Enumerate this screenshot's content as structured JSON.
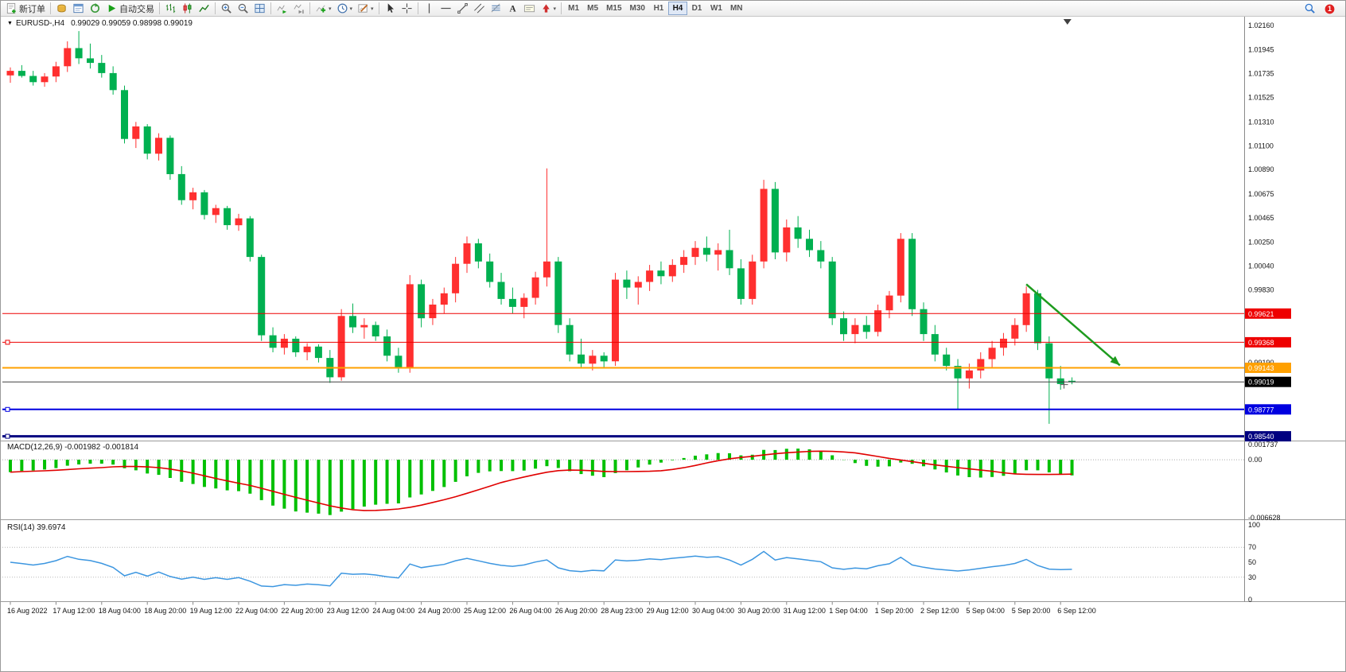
{
  "toolbar": {
    "items": [
      {
        "type": "button",
        "name": "new-order",
        "icon": "new-order",
        "label": "新订单"
      },
      {
        "type": "sep"
      },
      {
        "type": "button",
        "name": "market-watch",
        "icon": "market-watch"
      },
      {
        "type": "button",
        "name": "data-window",
        "icon": "data-window"
      },
      {
        "type": "button",
        "name": "navigator",
        "icon": "navigator"
      },
      {
        "type": "button",
        "name": "auto-trading",
        "icon": "autotrade",
        "label": "自动交易"
      },
      {
        "type": "sep"
      },
      {
        "type": "button",
        "name": "bar-chart-mode",
        "icon": "bar-chart"
      },
      {
        "type": "button",
        "name": "candlestick-mode",
        "icon": "candlestick-chart"
      },
      {
        "type": "button",
        "name": "line-chart-mode",
        "icon": "line-chart"
      },
      {
        "type": "sep"
      },
      {
        "type": "button",
        "name": "zoom-in",
        "icon": "zoom-in"
      },
      {
        "type": "button",
        "name": "zoom-out",
        "icon": "zoom-out"
      },
      {
        "type": "button",
        "name": "tile-windows",
        "icon": "tile-windows"
      },
      {
        "type": "sep"
      },
      {
        "type": "button",
        "name": "auto-scroll",
        "icon": "auto-scroll"
      },
      {
        "type": "button",
        "name": "chart-shift",
        "icon": "chart-shift"
      },
      {
        "type": "sep"
      },
      {
        "type": "button",
        "name": "indicators",
        "icon": "indicators",
        "caret": true
      },
      {
        "type": "button",
        "name": "periods",
        "icon": "periods-clock",
        "caret": true
      },
      {
        "type": "button",
        "name": "templates",
        "icon": "templates",
        "caret": true
      },
      {
        "type": "sep"
      },
      {
        "type": "button",
        "name": "cursor",
        "icon": "cursor"
      },
      {
        "type": "button",
        "name": "crosshair",
        "icon": "crosshair"
      },
      {
        "type": "sep"
      },
      {
        "type": "button",
        "name": "vertical-line",
        "icon": "vline"
      },
      {
        "type": "button",
        "name": "horizontal-line",
        "icon": "hline"
      },
      {
        "type": "button",
        "name": "trendline",
        "icon": "trendline"
      },
      {
        "type": "button",
        "name": "equidistant-channel",
        "icon": "channel"
      },
      {
        "type": "button",
        "name": "fibonacci",
        "icon": "fibo"
      },
      {
        "type": "button",
        "name": "text-tool",
        "icon": "text"
      },
      {
        "type": "button",
        "name": "text-label",
        "icon": "label"
      },
      {
        "type": "button",
        "name": "arrow-objects",
        "icon": "arrow-objects",
        "caret": true
      },
      {
        "type": "sep"
      }
    ],
    "timeframes": [
      {
        "label": "M1"
      },
      {
        "label": "M5"
      },
      {
        "label": "M15"
      },
      {
        "label": "M30"
      },
      {
        "label": "H1"
      },
      {
        "label": "H4",
        "active": true
      },
      {
        "label": "D1"
      },
      {
        "label": "W1"
      },
      {
        "label": "MN"
      }
    ],
    "right": [
      {
        "name": "search",
        "icon": "search"
      },
      {
        "name": "notifications",
        "icon": "notification",
        "badge": "1"
      }
    ]
  },
  "chart": {
    "symbol_label": "EURUSD-,H4",
    "ohlc_readout": "0.99029 0.99059 0.98998 0.99019",
    "macd_label": "MACD(12,26,9) -0.001982 -0.001814",
    "rsi_label": "RSI(14) 39.6974",
    "price_axis": {
      "labels": [
        {
          "text": "1.02160",
          "price": 1.0216
        },
        {
          "text": "1.01945",
          "price": 1.01945
        },
        {
          "text": "1.01735",
          "price": 1.01735
        },
        {
          "text": "1.01525",
          "price": 1.01525
        },
        {
          "text": "1.01310",
          "price": 1.0131
        },
        {
          "text": "1.01100",
          "price": 1.011
        },
        {
          "text": "1.00890",
          "price": 1.0089
        },
        {
          "text": "1.00675",
          "price": 1.00675
        },
        {
          "text": "1.00465",
          "price": 1.00465
        },
        {
          "text": "1.00250",
          "price": 1.0025
        },
        {
          "text": "1.00040",
          "price": 1.0004
        },
        {
          "text": "0.99830",
          "price": 0.9983
        },
        {
          "text": "0.99190",
          "price": 0.9919
        }
      ]
    },
    "hlines": [
      {
        "name": "resistance-line-upper",
        "price": 0.99621,
        "color": "#ee0000",
        "width": 1,
        "badge": "0.99621",
        "badge_bg": "#ee0000"
      },
      {
        "name": "resistance-line-lower",
        "price": 0.99368,
        "color": "#ee0000",
        "width": 1,
        "badge": "0.99368",
        "badge_bg": "#ee0000",
        "handles": true
      },
      {
        "name": "support-line-gold",
        "price": 0.99143,
        "color": "#ffa000",
        "width": 2,
        "badge": "0.99143",
        "badge_bg": "#ffa000"
      },
      {
        "name": "current-price-line",
        "price": 0.99019,
        "color": "#404040",
        "width": 1,
        "badge": "0.99019",
        "badge_bg": "#000000"
      },
      {
        "name": "support-line-blue",
        "price": 0.98777,
        "color": "#0000e0",
        "width": 2,
        "badge": "0.98777",
        "badge_bg": "#0000e0",
        "handles": true
      },
      {
        "name": "support-line-navy",
        "price": 0.9854,
        "color": "#000080",
        "width": 3,
        "badge": "0.98540",
        "badge_bg": "#000080",
        "handles": true
      }
    ],
    "arrow": {
      "from_bar": 89,
      "from_price": 0.9988,
      "to_bar": 97.2,
      "to_price": 0.99165,
      "color": "#1e9b1e"
    },
    "cursor": {
      "bar": 92.3,
      "price": 0.98995
    },
    "shift_marker_bar": 92.6
  },
  "chart_data": {
    "type": "candlestick",
    "symbol": "EURUSD-",
    "timeframe": "H4",
    "ylim": [
      0.98502,
      1.02223
    ],
    "colors": {
      "bull": "#ff2f2f",
      "bear": "#00b050",
      "macd_histogram": "#00c000",
      "macd_signal": "#e00000",
      "rsi_line": "#3c96e0"
    },
    "x_labels": [
      "16 Aug 2022",
      "17 Aug 12:00",
      "18 Aug 04:00",
      "18 Aug 20:00",
      "19 Aug 12:00",
      "22 Aug 04:00",
      "22 Aug 20:00",
      "23 Aug 12:00",
      "24 Aug 04:00",
      "24 Aug 20:00",
      "25 Aug 12:00",
      "26 Aug 04:00",
      "26 Aug 20:00",
      "28 Aug 23:00",
      "29 Aug 12:00",
      "30 Aug 04:00",
      "30 Aug 20:00",
      "31 Aug 12:00",
      "1 Sep 04:00",
      "1 Sep 20:00",
      "2 Sep 12:00",
      "5 Sep 04:00",
      "5 Sep 20:00",
      "6 Sep 12:00"
    ],
    "bars_per_label": 4,
    "ohlc": [
      [
        1.0172,
        1.0179,
        1.01655,
        1.0176
      ],
      [
        1.0176,
        1.0181,
        1.017,
        1.01715
      ],
      [
        1.01715,
        1.0176,
        1.0163,
        1.0166
      ],
      [
        1.0166,
        1.0174,
        1.0162,
        1.0171
      ],
      [
        1.0171,
        1.0184,
        1.0166,
        1.018
      ],
      [
        1.018,
        1.0202,
        1.0175,
        1.0196
      ],
      [
        1.0196,
        1.0211,
        1.0182,
        1.0187
      ],
      [
        1.0187,
        1.02,
        1.0178,
        1.0183
      ],
      [
        1.0183,
        1.019,
        1.017,
        1.0174
      ],
      [
        1.0174,
        1.018,
        1.0155,
        1.0159
      ],
      [
        1.0159,
        1.0163,
        1.0112,
        1.0116
      ],
      [
        1.0116,
        1.0131,
        1.0108,
        1.0127
      ],
      [
        1.0127,
        1.0129,
        1.0098,
        1.0103
      ],
      [
        1.0103,
        1.0121,
        1.0097,
        1.0117
      ],
      [
        1.0117,
        1.0119,
        1.008,
        1.0085
      ],
      [
        1.0085,
        1.0092,
        1.0058,
        1.0062
      ],
      [
        1.0062,
        1.0073,
        1.0054,
        1.0069
      ],
      [
        1.0069,
        1.0071,
        1.0045,
        1.0049
      ],
      [
        1.0049,
        1.0058,
        1.0042,
        1.0055
      ],
      [
        1.0055,
        1.0057,
        1.0036,
        1.004
      ],
      [
        1.004,
        1.005,
        1.0035,
        1.0046
      ],
      [
        1.0046,
        1.0048,
        1.0008,
        1.0012
      ],
      [
        1.0012,
        1.0014,
        0.9938,
        0.9943
      ],
      [
        0.9943,
        0.995,
        0.9928,
        0.9932
      ],
      [
        0.9932,
        0.9944,
        0.9926,
        0.994
      ],
      [
        0.994,
        0.9942,
        0.9924,
        0.9928
      ],
      [
        0.9928,
        0.9936,
        0.9921,
        0.9933
      ],
      [
        0.9933,
        0.9935,
        0.9919,
        0.9923
      ],
      [
        0.9923,
        0.993,
        0.9901,
        0.9906
      ],
      [
        0.9906,
        0.9966,
        0.9903,
        0.996
      ],
      [
        0.996,
        0.9971,
        0.9945,
        0.995
      ],
      [
        0.995,
        0.9958,
        0.994,
        0.9952
      ],
      [
        0.9952,
        0.9955,
        0.9938,
        0.9942
      ],
      [
        0.9942,
        0.9948,
        0.992,
        0.9925
      ],
      [
        0.9925,
        0.9932,
        0.991,
        0.9914
      ],
      [
        0.9914,
        0.9996,
        0.991,
        0.9988
      ],
      [
        0.9988,
        0.9992,
        0.995,
        0.9958
      ],
      [
        0.9958,
        0.9975,
        0.9952,
        0.997
      ],
      [
        0.997,
        0.9985,
        0.9962,
        0.998
      ],
      [
        0.998,
        1.0012,
        0.9972,
        1.0006
      ],
      [
        1.0006,
        1.003,
        0.9998,
        1.0024
      ],
      [
        1.0024,
        1.0028,
        1.0002,
        1.0008
      ],
      [
        1.0008,
        1.0015,
        0.9985,
        0.999
      ],
      [
        0.999,
        0.9998,
        0.997,
        0.9975
      ],
      [
        0.9975,
        0.9985,
        0.9962,
        0.9968
      ],
      [
        0.9968,
        0.998,
        0.9958,
        0.9976
      ],
      [
        0.9976,
        0.9999,
        0.997,
        0.9994
      ],
      [
        0.9994,
        1.009,
        0.9986,
        1.0008
      ],
      [
        1.0008,
        1.0012,
        0.9945,
        0.9952
      ],
      [
        0.9952,
        0.9958,
        0.992,
        0.9926
      ],
      [
        0.9926,
        0.994,
        0.9914,
        0.9918
      ],
      [
        0.9918,
        0.993,
        0.9912,
        0.9925
      ],
      [
        0.9925,
        0.9928,
        0.9915,
        0.992
      ],
      [
        0.992,
        0.9998,
        0.9916,
        0.9992
      ],
      [
        0.9992,
        1.0,
        0.9975,
        0.9985
      ],
      [
        0.9985,
        0.9995,
        0.997,
        0.999
      ],
      [
        0.999,
        1.0005,
        0.9982,
        1.0
      ],
      [
        1.0,
        1.0008,
        0.9988,
        0.9995
      ],
      [
        0.9995,
        1.001,
        0.999,
        1.0005
      ],
      [
        1.0005,
        1.0018,
        0.9998,
        1.0012
      ],
      [
        1.0012,
        1.0026,
        1.0005,
        1.002
      ],
      [
        1.002,
        1.003,
        1.0008,
        1.0014
      ],
      [
        1.0014,
        1.0024,
        1.0,
        1.0018
      ],
      [
        1.0018,
        1.0036,
        0.9996,
        1.0002
      ],
      [
        1.0002,
        1.001,
        0.997,
        0.9975
      ],
      [
        0.9975,
        1.0014,
        0.997,
        1.0008
      ],
      [
        1.0008,
        1.008,
        1.0002,
        1.0072
      ],
      [
        1.0072,
        1.0078,
        1.001,
        1.0016
      ],
      [
        1.0016,
        1.0045,
        1.0008,
        1.0038
      ],
      [
        1.0038,
        1.0048,
        1.002,
        1.0028
      ],
      [
        1.0028,
        1.0036,
        1.0012,
        1.0018
      ],
      [
        1.0018,
        1.0026,
        1.0002,
        1.0008
      ],
      [
        1.0008,
        1.0012,
        0.9952,
        0.9958
      ],
      [
        0.9958,
        0.9964,
        0.9938,
        0.9944
      ],
      [
        0.9944,
        0.9958,
        0.9936,
        0.9952
      ],
      [
        0.9952,
        0.996,
        0.994,
        0.9946
      ],
      [
        0.9946,
        0.997,
        0.9942,
        0.9965
      ],
      [
        0.9965,
        0.9982,
        0.9958,
        0.9978
      ],
      [
        0.9978,
        1.0033,
        0.9972,
        1.0028
      ],
      [
        1.0028,
        1.0033,
        0.996,
        0.9966
      ],
      [
        0.9966,
        0.9972,
        0.9938,
        0.9944
      ],
      [
        0.9944,
        0.9952,
        0.992,
        0.9926
      ],
      [
        0.9926,
        0.9932,
        0.9912,
        0.9916
      ],
      [
        0.9916,
        0.9922,
        0.9878,
        0.9905
      ],
      [
        0.9905,
        0.9918,
        0.9896,
        0.9912
      ],
      [
        0.9912,
        0.9928,
        0.9905,
        0.9922
      ],
      [
        0.9922,
        0.9938,
        0.9915,
        0.9932
      ],
      [
        0.9932,
        0.9945,
        0.9925,
        0.994
      ],
      [
        0.994,
        0.9958,
        0.9934,
        0.9952
      ],
      [
        0.9952,
        0.9986,
        0.9946,
        0.998
      ],
      [
        0.998,
        0.9983,
        0.993,
        0.9936
      ],
      [
        0.9936,
        0.9942,
        0.9865,
        0.9905
      ],
      [
        0.9905,
        0.9916,
        0.9895,
        0.99
      ],
      [
        0.99029,
        0.99059,
        0.98998,
        0.99019
      ]
    ],
    "indicators": [
      {
        "name": "MACD",
        "params": [
          12,
          26,
          9
        ],
        "current": {
          "macd": -0.001982,
          "signal": -0.001814
        },
        "ylim": [
          0.001737,
          -0.006628
        ],
        "axis_labels": [
          {
            "text": "0.001737",
            "value": 0.001737
          },
          {
            "text": "0.00",
            "value": 0
          },
          {
            "text": "-0.006628",
            "value": -0.006628
          }
        ]
      },
      {
        "name": "RSI",
        "params": [
          14
        ],
        "current": 39.6974,
        "levels": [
          70,
          30
        ],
        "axis_labels": [
          {
            "text": "100",
            "value": 100
          },
          {
            "text": "70",
            "value": 70
          },
          {
            "text": "50",
            "value": 50
          },
          {
            "text": "30",
            "value": 30
          },
          {
            "text": "0",
            "value": 0
          }
        ]
      }
    ]
  }
}
